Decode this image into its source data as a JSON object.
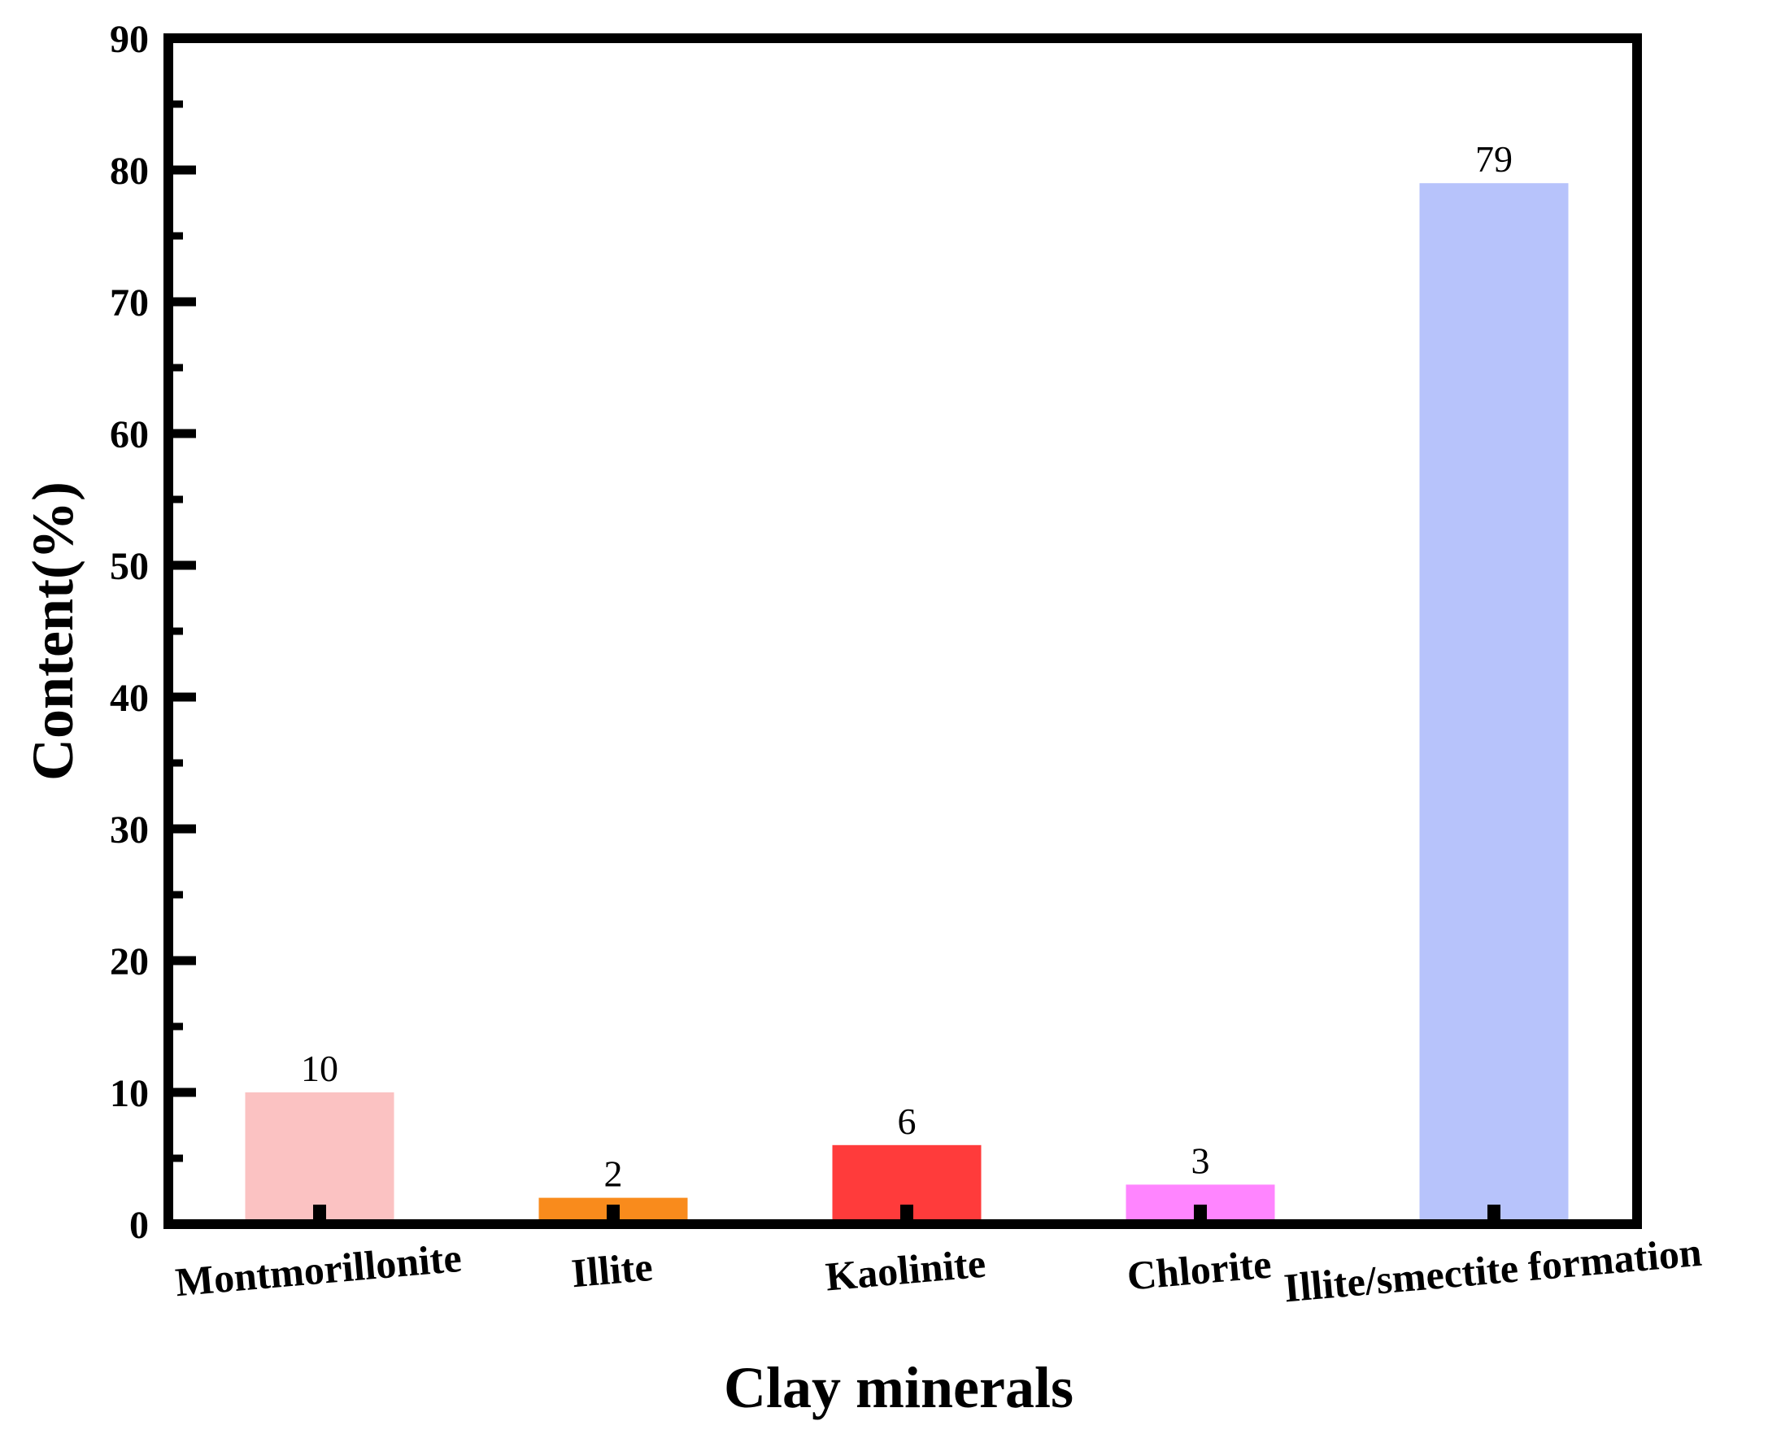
{
  "chart_data": {
    "type": "bar",
    "title": "",
    "xlabel": "Clay minerals",
    "ylabel": "Content(%)",
    "ylim": [
      0,
      90
    ],
    "yticks": [
      0,
      10,
      20,
      30,
      40,
      50,
      60,
      70,
      80,
      90
    ],
    "grid": false,
    "categories": [
      "Montmorillonite",
      "Illite",
      "Kaolinite",
      "Chlorite",
      "Illite/smectite formation"
    ],
    "values": [
      10,
      2,
      6,
      3,
      79
    ],
    "data_labels": [
      "10",
      "2",
      "6",
      "3",
      "79"
    ],
    "colors": [
      "#FBC2C2",
      "#F98B1C",
      "#FF3B3B",
      "#FF85FF",
      "#B7C3FB"
    ]
  }
}
